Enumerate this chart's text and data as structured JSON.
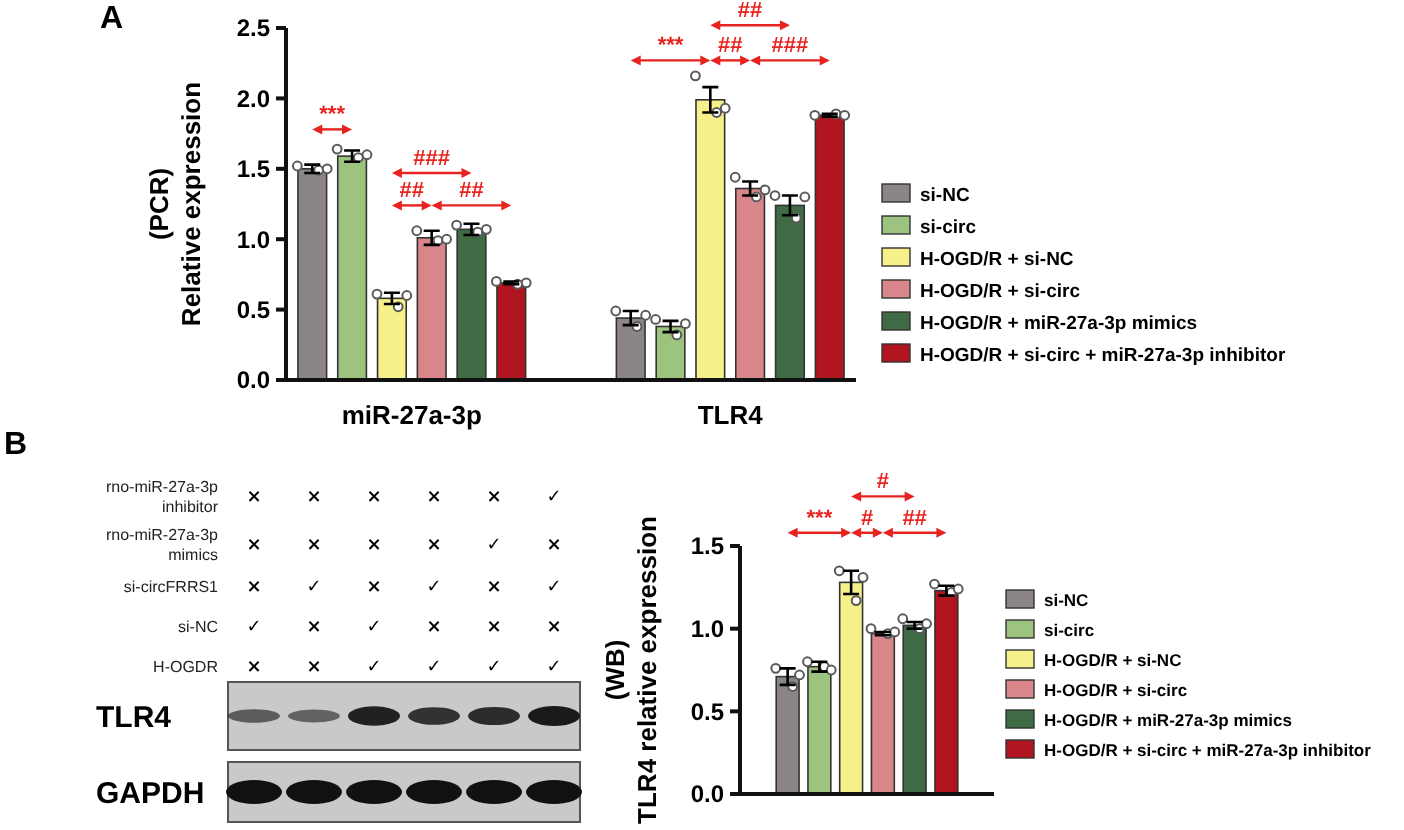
{
  "chart_data": [
    {
      "type": "bar",
      "title": "A",
      "ylabel": "(PCR)\nRelative expression",
      "categories": [
        "miR-27a-3p",
        "TLR4"
      ],
      "ylim": [
        0,
        2.5
      ],
      "yticks": [
        {
          "value": 0,
          "label": "0.0"
        },
        0.5,
        {
          "value": 1,
          "label": "1.0"
        },
        1.5,
        {
          "value": 2,
          "label": "2.0"
        },
        2.5
      ],
      "grid": false,
      "legend": "right",
      "series": [
        {
          "name": "si-NC",
          "color": "#8c8587",
          "values": [
            1.5,
            0.44
          ],
          "errors": [
            0.03,
            0.05
          ]
        },
        {
          "name": "si-circ",
          "color": "#9dc47f",
          "values": [
            1.59,
            0.38
          ],
          "errors": [
            0.04,
            0.04
          ]
        },
        {
          "name": "H-OGD/R + si-NC",
          "color": "#f5f08a",
          "values": [
            0.58,
            1.99
          ],
          "errors": [
            0.04,
            0.09
          ]
        },
        {
          "name": "H-OGD/R + si-circ",
          "color": "#d9868a",
          "values": [
            1.01,
            1.36
          ],
          "errors": [
            0.05,
            0.05
          ]
        },
        {
          "name": "H-OGD/R + miR-27a-3p mimics",
          "color": "#3f6b45",
          "values": [
            1.07,
            1.24
          ],
          "errors": [
            0.04,
            0.07
          ]
        },
        {
          "name": "H-OGD/R + si-circ + miR-27a-3p inhibitor",
          "color": "#b0141e",
          "values": [
            0.69,
            1.88
          ],
          "errors": [
            0.01,
            0.01
          ]
        },
        {
          "type": "scatter",
          "color": "#ffffff",
          "marker": "circle",
          "x": [
            "miR-27a-3p",
            "miR-27a-3p",
            "miR-27a-3p",
            "TLR4",
            "TLR4",
            "TLR4"
          ],
          "values": [
            1.52,
            1.49,
            1.5,
            0.49,
            0.38,
            0.46
          ]
        },
        {
          "type": "scatter",
          "color": "#ffffff",
          "marker": "circle",
          "x": [
            "miR-27a-3p",
            "miR-27a-3p",
            "miR-27a-3p",
            "TLR4",
            "TLR4",
            "TLR4"
          ],
          "values": [
            1.64,
            1.58,
            1.6,
            0.43,
            0.32,
            0.4
          ]
        },
        {
          "type": "scatter",
          "color": "#ffffff",
          "marker": "circle",
          "x": [
            "miR-27a-3p",
            "miR-27a-3p",
            "miR-27a-3p",
            "TLR4",
            "TLR4",
            "TLR4"
          ],
          "values": [
            0.61,
            0.52,
            0.6,
            2.16,
            1.9,
            1.93
          ]
        },
        {
          "type": "scatter",
          "color": "#ffffff",
          "marker": "circle",
          "x": [
            "miR-27a-3p",
            "miR-27a-3p",
            "miR-27a-3p",
            "TLR4",
            "TLR4",
            "TLR4"
          ],
          "values": [
            1.06,
            0.99,
            1.0,
            1.44,
            1.3,
            1.35
          ]
        },
        {
          "type": "scatter",
          "color": "#ffffff",
          "marker": "circle",
          "x": [
            "miR-27a-3p",
            "miR-27a-3p",
            "miR-27a-3p",
            "TLR4",
            "TLR4",
            "TLR4"
          ],
          "values": [
            1.1,
            1.05,
            1.07,
            1.31,
            1.15,
            1.3
          ]
        },
        {
          "type": "scatter",
          "color": "#ffffff",
          "marker": "circle",
          "x": [
            "miR-27a-3p",
            "miR-27a-3p",
            "miR-27a-3p",
            "TLR4",
            "TLR4",
            "TLR4"
          ],
          "values": [
            0.7,
            0.68,
            0.69,
            1.88,
            1.89,
            1.88
          ]
        }
      ],
      "annotations": [
        "***",
        "###",
        "##",
        "##",
        "***",
        "##",
        "###",
        "##"
      ]
    },
    {
      "type": "other",
      "title": "B",
      "y_categories": [
        "rno-miR-27a-3p\ninhibitor",
        "rno-miR-27a-3p\nmimics",
        "si-circFRRS1",
        "si-NC",
        "H-OGDR"
      ],
      "cell_labels": [
        [
          "×",
          "×",
          "×",
          "×",
          "×",
          "✓"
        ],
        [
          "×",
          "×",
          "×",
          "×",
          "✓",
          "×"
        ],
        [
          "×",
          "✓",
          "×",
          "✓",
          "×",
          "✓"
        ],
        [
          "✓",
          "×",
          "✓",
          "×",
          "×",
          "×"
        ],
        [
          "×",
          "×",
          "✓",
          "✓",
          "✓",
          "✓"
        ]
      ],
      "annotations": [
        "TLR4",
        "GAPDH"
      ]
    },
    {
      "type": "bar",
      "ylabel": "(WB)\nTLR4 relative expression",
      "categories": [
        null
      ],
      "ylim": [
        0,
        1.5
      ],
      "yticks": [
        {
          "value": 0,
          "label": "0.0"
        },
        0.5,
        {
          "value": 1,
          "label": "1.0"
        },
        1.5
      ],
      "grid": false,
      "legend": "right",
      "series": [
        {
          "name": "si-NC",
          "color": "#8c8587",
          "values": [
            0.71
          ],
          "errors": [
            0.05
          ]
        },
        {
          "name": "si-circ",
          "color": "#9dc47f",
          "values": [
            0.77
          ],
          "errors": [
            0.03
          ]
        },
        {
          "name": "H-OGD/R + si-NC",
          "color": "#f5f08a",
          "values": [
            1.28
          ],
          "errors": [
            0.07
          ]
        },
        {
          "name": "H-OGD/R + si-circ",
          "color": "#d9868a",
          "values": [
            0.97
          ],
          "errors": [
            0.01
          ]
        },
        {
          "name": "H-OGD/R + miR-27a-3p mimics",
          "color": "#3f6b45",
          "values": [
            1.02
          ],
          "errors": [
            0.02
          ]
        },
        {
          "name": "H-OGD/R + si-circ + miR-27a-3p inhibitor",
          "color": "#b0141e",
          "values": [
            1.23
          ],
          "errors": [
            0.03
          ]
        },
        {
          "type": "scatter",
          "color": "#ffffff",
          "marker": "circle",
          "x": [
            null,
            null,
            null
          ],
          "values": [
            0.76,
            0.65,
            0.72
          ]
        },
        {
          "type": "scatter",
          "color": "#ffffff",
          "marker": "circle",
          "x": [
            null,
            null,
            null
          ],
          "values": [
            0.8,
            0.77,
            0.75
          ]
        },
        {
          "type": "scatter",
          "color": "#ffffff",
          "marker": "circle",
          "x": [
            null,
            null,
            null
          ],
          "values": [
            1.35,
            1.17,
            1.31
          ]
        },
        {
          "type": "scatter",
          "color": "#ffffff",
          "marker": "circle",
          "x": [
            null,
            null,
            null
          ],
          "values": [
            1.0,
            0.97,
            0.98
          ]
        },
        {
          "type": "scatter",
          "color": "#ffffff",
          "marker": "circle",
          "x": [
            null,
            null,
            null
          ],
          "values": [
            1.06,
            1.0,
            1.03
          ]
        },
        {
          "type": "scatter",
          "color": "#ffffff",
          "marker": "circle",
          "x": [
            null,
            null,
            null
          ],
          "values": [
            1.27,
            1.22,
            1.24
          ]
        }
      ],
      "annotations": [
        "***",
        "#",
        "##",
        "#"
      ]
    }
  ]
}
